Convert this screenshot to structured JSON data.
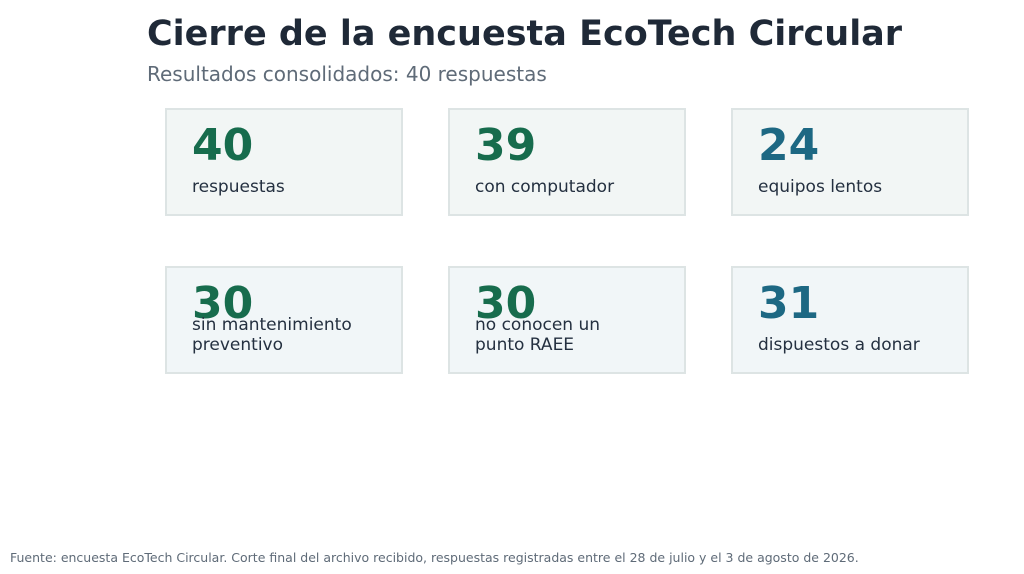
{
  "header": {
    "title": "Cierre de la encuesta EcoTech Circular",
    "subtitle": "Resultados consolidados: 40 respuestas"
  },
  "cards": [
    {
      "value": "40",
      "label": "respuestas",
      "color": "#176c4d"
    },
    {
      "value": "39",
      "label": "con computador",
      "color": "#176c4d"
    },
    {
      "value": "24",
      "label": "equipos lentos",
      "color": "#1d6883"
    },
    {
      "value": "30",
      "label_line1": "sin mantenimiento",
      "label_line2": "preventivo",
      "color": "#176c4d"
    },
    {
      "value": "30",
      "label_line1": "no conocen un",
      "label_line2": "punto RAEE",
      "color": "#176c4d"
    },
    {
      "value": "31",
      "label": "dispuestos a donar",
      "color": "#1d6883"
    }
  ],
  "footer": {
    "source": "Fuente: encuesta EcoTech Circular. Corte final del archivo recibido, respuestas registradas entre el 28 de julio y el 3 de agosto de 2026."
  }
}
